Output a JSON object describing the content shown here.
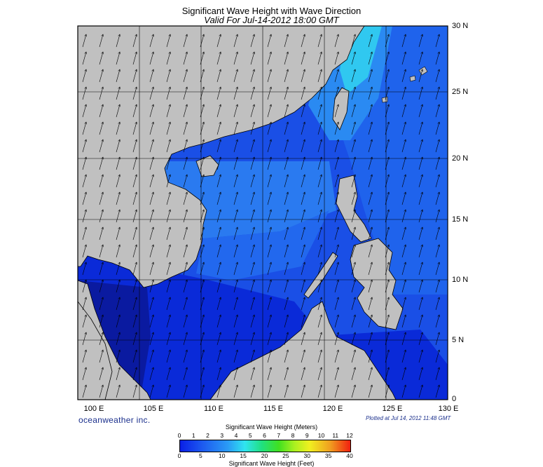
{
  "header": {
    "title": "Significant Wave Height with Wave Direction",
    "subtitle": "Valid For Jul-14-2012 18:00 GMT"
  },
  "map": {
    "lon_range": [
      100,
      130
    ],
    "lat_range": [
      0,
      30
    ],
    "lon_labels": [
      "100 E",
      "105 E",
      "110 E",
      "115 E",
      "120 E",
      "125 E",
      "130 E"
    ],
    "lat_labels": [
      "30 N",
      "25 N",
      "20 N",
      "15 N",
      "10 N",
      "5 N",
      "0"
    ],
    "colors": {
      "land": "#c0c0c0",
      "sea_deep": "#0a2ad8",
      "sea_mid": "#1a4fe6",
      "sea_light": "#2a7af0",
      "sea_cyan": "#30c8f0",
      "gulf_dark": "#0a1aa0"
    },
    "wave_direction": "north-northeast"
  },
  "footer": {
    "brand": "oceanweather inc.",
    "plotted": "Plotted at Jul 14, 2012 11:48 GMT"
  },
  "legend": {
    "title_meters": "Significant Wave Height (Meters)",
    "title_feet": "Significant Wave Height (Feet)",
    "meters": [
      "0",
      "1",
      "2",
      "3",
      "4",
      "5",
      "6",
      "7",
      "8",
      "9",
      "10",
      "11",
      "12"
    ],
    "feet": [
      "0",
      "5",
      "10",
      "15",
      "20",
      "25",
      "30",
      "35",
      "40"
    ]
  }
}
